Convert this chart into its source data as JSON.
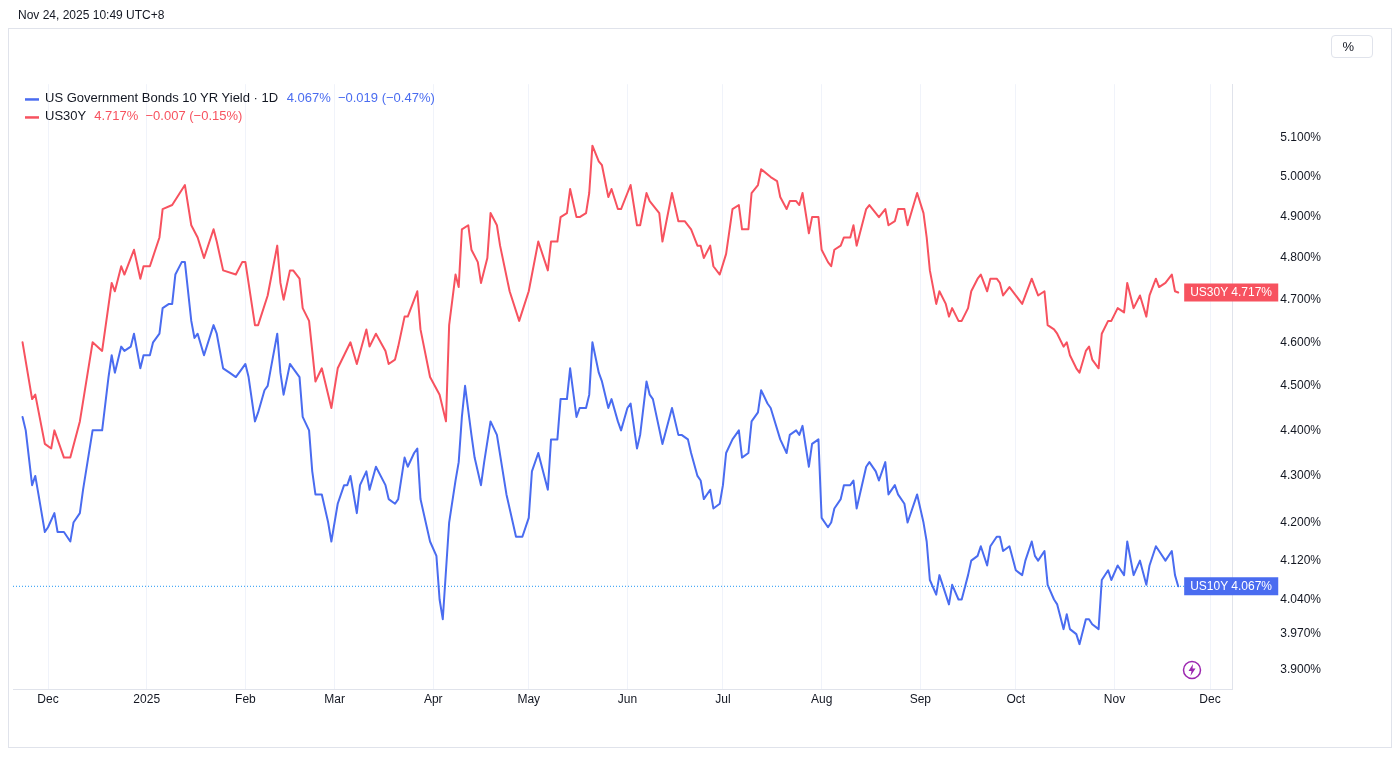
{
  "chart_data": {
    "type": "line",
    "legend": "top left",
    "grid": "x",
    "log": true,
    "xlim": [
      "2024-11-20",
      "2025-12-08"
    ],
    "xticks": [
      {
        "value": "2024-12-01",
        "label": "Dec"
      },
      {
        "value": "2025-01-01",
        "label": "2025"
      },
      {
        "value": "2025-02-01",
        "label": "Feb"
      },
      {
        "value": "2025-03-01",
        "label": "Mar"
      },
      {
        "value": "2025-04-01",
        "label": "Apr"
      },
      {
        "value": "2025-05-01",
        "label": "May"
      },
      {
        "value": "2025-06-01",
        "label": "Jun"
      },
      {
        "value": "2025-07-01",
        "label": "Jul"
      },
      {
        "value": "2025-08-01",
        "label": "Aug"
      },
      {
        "value": "2025-09-01",
        "label": "Sep"
      },
      {
        "value": "2025-10-01",
        "label": "Oct"
      },
      {
        "value": "2025-11-01",
        "label": "Nov"
      },
      {
        "value": "2025-12-01",
        "label": "Dec"
      }
    ],
    "ylim": [
      3.86,
      5.24
    ],
    "yticks": [
      {
        "value": 3.9,
        "label": "3.900%"
      },
      {
        "value": 3.97,
        "label": "3.970%"
      },
      {
        "value": 4.04,
        "label": "4.040%"
      },
      {
        "value": 4.12,
        "label": "4.120%"
      },
      {
        "value": 4.2,
        "label": "4.200%"
      },
      {
        "value": 4.3,
        "label": "4.300%"
      },
      {
        "value": 4.4,
        "label": "4.400%"
      },
      {
        "value": 4.5,
        "label": "4.500%"
      },
      {
        "value": 4.6,
        "label": "4.600%"
      },
      {
        "value": 4.7,
        "label": "4.700%"
      },
      {
        "value": 4.8,
        "label": "4.800%"
      },
      {
        "value": 4.9,
        "label": "4.900%"
      },
      {
        "value": 5.0,
        "label": "5.000%"
      },
      {
        "value": 5.1,
        "label": "5.100%"
      }
    ],
    "ref_lines": [
      {
        "axis": "y",
        "value": 4.067,
        "color": "#2196f3",
        "line_style": "dotted"
      }
    ],
    "annotations": [
      "Nov 24, 2025 10:49 UTC+8",
      "4.067%  −0.019 (−0.47%)",
      "4.717%  −0.007 (−0.15%)",
      "%",
      {
        "text": "US10Y 4.067%",
        "x": "2025-11-21",
        "y": 4.067
      },
      {
        "text": "US30Y 4.717%",
        "x": "2025-11-21",
        "y": 4.717
      }
    ],
    "series": [
      {
        "name": "US Government Bonds 10 YR Yield · 1D",
        "color": "#4a6cf0",
        "x": [
          "2024-11-23",
          "2024-11-24",
          "2024-11-26",
          "2024-11-27",
          "2024-11-28",
          "2024-11-30",
          "2024-12-01",
          "2024-12-03",
          "2024-12-04",
          "2024-12-06",
          "2024-12-08",
          "2024-12-09",
          "2024-12-11",
          "2024-12-12",
          "2024-12-15",
          "2024-12-17",
          "2024-12-18",
          "2024-12-20",
          "2024-12-21",
          "2024-12-22",
          "2024-12-24",
          "2024-12-25",
          "2024-12-27",
          "2024-12-28",
          "2024-12-30",
          "2024-12-31",
          "2025-01-02",
          "2025-01-03",
          "2025-01-05",
          "2025-01-06",
          "2025-01-08",
          "2025-01-09",
          "2025-01-10",
          "2025-01-12",
          "2025-01-13",
          "2025-01-15",
          "2025-01-16",
          "2025-01-17",
          "2025-01-19",
          "2025-01-22",
          "2025-01-23",
          "2025-01-25",
          "2025-01-27",
          "2025-01-29",
          "2025-01-31",
          "2025-02-01",
          "2025-02-02",
          "2025-02-04",
          "2025-02-05",
          "2025-02-07",
          "2025-02-08",
          "2025-02-09",
          "2025-02-11",
          "2025-02-12",
          "2025-02-13",
          "2025-02-15",
          "2025-02-16",
          "2025-02-18",
          "2025-02-19",
          "2025-02-21",
          "2025-02-22",
          "2025-02-23",
          "2025-02-25",
          "2025-02-27",
          "2025-02-28",
          "2025-03-02",
          "2025-03-04",
          "2025-03-05",
          "2025-03-06",
          "2025-03-08",
          "2025-03-09",
          "2025-03-11",
          "2025-03-12",
          "2025-03-14",
          "2025-03-17",
          "2025-03-18",
          "2025-03-20",
          "2025-03-21",
          "2025-03-23",
          "2025-03-24",
          "2025-03-26",
          "2025-03-27",
          "2025-03-28",
          "2025-03-31",
          "2025-04-02",
          "2025-04-03",
          "2025-04-04",
          "2025-04-06",
          "2025-04-08",
          "2025-04-09",
          "2025-04-10",
          "2025-04-11",
          "2025-04-13",
          "2025-04-14",
          "2025-04-16",
          "2025-04-17",
          "2025-04-19",
          "2025-04-21",
          "2025-04-24",
          "2025-04-27",
          "2025-04-29",
          "2025-05-01",
          "2025-05-02",
          "2025-05-04",
          "2025-05-07",
          "2025-05-08",
          "2025-05-10",
          "2025-05-11",
          "2025-05-13",
          "2025-05-14",
          "2025-05-16",
          "2025-05-17",
          "2025-05-19",
          "2025-05-20",
          "2025-05-21",
          "2025-05-23",
          "2025-05-24",
          "2025-05-26",
          "2025-05-27",
          "2025-05-29",
          "2025-05-30",
          "2025-06-01",
          "2025-06-02",
          "2025-06-04",
          "2025-06-05",
          "2025-06-07",
          "2025-06-08",
          "2025-06-09",
          "2025-06-12",
          "2025-06-15",
          "2025-06-17",
          "2025-06-18",
          "2025-06-20",
          "2025-06-21",
          "2025-06-23",
          "2025-06-24",
          "2025-06-25",
          "2025-06-27",
          "2025-06-28",
          "2025-06-30",
          "2025-07-01",
          "2025-07-02",
          "2025-07-04",
          "2025-07-06",
          "2025-07-07",
          "2025-07-09",
          "2025-07-10",
          "2025-07-12",
          "2025-07-13",
          "2025-07-15",
          "2025-07-16",
          "2025-07-19",
          "2025-07-21",
          "2025-07-22",
          "2025-07-24",
          "2025-07-25",
          "2025-07-26",
          "2025-07-28",
          "2025-07-29",
          "2025-07-31",
          "2025-08-01",
          "2025-08-03",
          "2025-08-04",
          "2025-08-05",
          "2025-08-07",
          "2025-08-08",
          "2025-08-10",
          "2025-08-11",
          "2025-08-12",
          "2025-08-15",
          "2025-08-16",
          "2025-08-18",
          "2025-08-19",
          "2025-08-21",
          "2025-08-22",
          "2025-08-24",
          "2025-08-25",
          "2025-08-27",
          "2025-08-28",
          "2025-08-31",
          "2025-09-02",
          "2025-09-03",
          "2025-09-04",
          "2025-09-06",
          "2025-09-07",
          "2025-09-09",
          "2025-09-10",
          "2025-09-11",
          "2025-09-13",
          "2025-09-14",
          "2025-09-16",
          "2025-09-17",
          "2025-09-19",
          "2025-09-20",
          "2025-09-22",
          "2025-09-23",
          "2025-09-25",
          "2025-09-26",
          "2025-09-27",
          "2025-09-29",
          "2025-10-01",
          "2025-10-03",
          "2025-10-04",
          "2025-10-06",
          "2025-10-07",
          "2025-10-08",
          "2025-10-10",
          "2025-10-11",
          "2025-10-13",
          "2025-10-14",
          "2025-10-16",
          "2025-10-17",
          "2025-10-18",
          "2025-10-20",
          "2025-10-21",
          "2025-10-23",
          "2025-10-24",
          "2025-10-25",
          "2025-10-27",
          "2025-10-28",
          "2025-10-30",
          "2025-10-31",
          "2025-11-02",
          "2025-11-04",
          "2025-11-05",
          "2025-11-07",
          "2025-11-09",
          "2025-11-11",
          "2025-11-12",
          "2025-11-14",
          "2025-11-15",
          "2025-11-17",
          "2025-11-19",
          "2025-11-20",
          "2025-11-21"
        ],
        "values": [
          4.43,
          4.4,
          4.28,
          4.3,
          4.26,
          4.18,
          4.19,
          4.22,
          4.18,
          4.18,
          4.16,
          4.2,
          4.22,
          4.27,
          4.4,
          4.4,
          4.4,
          4.52,
          4.57,
          4.53,
          4.59,
          4.58,
          4.59,
          4.62,
          4.54,
          4.57,
          4.57,
          4.6,
          4.62,
          4.68,
          4.69,
          4.69,
          4.76,
          4.79,
          4.79,
          4.65,
          4.61,
          4.62,
          4.57,
          4.64,
          4.62,
          4.54,
          4.53,
          4.52,
          4.54,
          4.55,
          4.52,
          4.42,
          4.44,
          4.49,
          4.5,
          4.54,
          4.62,
          4.53,
          4.48,
          4.55,
          4.54,
          4.52,
          4.43,
          4.4,
          4.31,
          4.26,
          4.26,
          4.2,
          4.16,
          4.24,
          4.28,
          4.28,
          4.3,
          4.22,
          4.28,
          4.31,
          4.27,
          4.32,
          4.28,
          4.25,
          4.24,
          4.25,
          4.34,
          4.32,
          4.35,
          4.36,
          4.25,
          4.16,
          4.13,
          4.04,
          4.0,
          4.2,
          4.29,
          4.33,
          4.43,
          4.5,
          4.39,
          4.34,
          4.28,
          4.33,
          4.42,
          4.39,
          4.26,
          4.17,
          4.17,
          4.21,
          4.31,
          4.35,
          4.27,
          4.38,
          4.38,
          4.47,
          4.47,
          4.54,
          4.43,
          4.45,
          4.45,
          4.48,
          4.6,
          4.53,
          4.51,
          4.45,
          4.47,
          4.42,
          4.4,
          4.45,
          4.46,
          4.36,
          4.39,
          4.51,
          4.48,
          4.47,
          4.37,
          4.45,
          4.39,
          4.39,
          4.38,
          4.35,
          4.3,
          4.29,
          4.25,
          4.27,
          4.23,
          4.24,
          4.28,
          4.35,
          4.38,
          4.4,
          4.34,
          4.35,
          4.42,
          4.44,
          4.49,
          4.46,
          4.45,
          4.38,
          4.35,
          4.39,
          4.4,
          4.39,
          4.41,
          4.32,
          4.37,
          4.38,
          4.21,
          4.19,
          4.2,
          4.23,
          4.25,
          4.28,
          4.28,
          4.29,
          4.23,
          4.32,
          4.33,
          4.31,
          4.29,
          4.33,
          4.26,
          4.28,
          4.26,
          4.24,
          4.2,
          4.26,
          4.2,
          4.16,
          4.08,
          4.05,
          4.09,
          4.05,
          4.03,
          4.07,
          4.04,
          4.04,
          4.09,
          4.12,
          4.13,
          4.15,
          4.11,
          4.15,
          4.17,
          4.17,
          4.14,
          4.15,
          4.1,
          4.09,
          4.12,
          4.16,
          4.13,
          4.12,
          4.14,
          4.07,
          4.04,
          4.03,
          3.98,
          4.01,
          3.98,
          3.97,
          3.95,
          4.0,
          4.0,
          3.99,
          3.98,
          4.08,
          4.1,
          4.08,
          4.11,
          4.09,
          4.16,
          4.09,
          4.12,
          4.07,
          4.11,
          4.15,
          4.14,
          4.12,
          4.14,
          4.09,
          4.067
        ]
      },
      {
        "name": "US30Y",
        "color": "#f7525f",
        "x": [
          "2024-11-23",
          "2024-11-26",
          "2024-11-27",
          "2024-11-30",
          "2024-12-02",
          "2024-12-03",
          "2024-12-06",
          "2024-12-08",
          "2024-12-11",
          "2024-12-15",
          "2024-12-18",
          "2024-12-21",
          "2024-12-22",
          "2024-12-24",
          "2024-12-25",
          "2024-12-28",
          "2024-12-30",
          "2024-12-31",
          "2025-01-02",
          "2025-01-05",
          "2025-01-06",
          "2025-01-09",
          "2025-01-13",
          "2025-01-15",
          "2025-01-17",
          "2025-01-19",
          "2025-01-22",
          "2025-01-23",
          "2025-01-25",
          "2025-01-29",
          "2025-01-31",
          "2025-02-01",
          "2025-02-04",
          "2025-02-05",
          "2025-02-08",
          "2025-02-11",
          "2025-02-12",
          "2025-02-13",
          "2025-02-15",
          "2025-02-16",
          "2025-02-18",
          "2025-02-19",
          "2025-02-21",
          "2025-02-22",
          "2025-02-23",
          "2025-02-25",
          "2025-02-27",
          "2025-02-28",
          "2025-03-02",
          "2025-03-04",
          "2025-03-06",
          "2025-03-08",
          "2025-03-11",
          "2025-03-12",
          "2025-03-14",
          "2025-03-17",
          "2025-03-18",
          "2025-03-20",
          "2025-03-21",
          "2025-03-23",
          "2025-03-24",
          "2025-03-27",
          "2025-03-28",
          "2025-03-31",
          "2025-04-03",
          "2025-04-05",
          "2025-04-06",
          "2025-04-08",
          "2025-04-09",
          "2025-04-10",
          "2025-04-12",
          "2025-04-13",
          "2025-04-15",
          "2025-04-16",
          "2025-04-18",
          "2025-04-19",
          "2025-04-21",
          "2025-04-22",
          "2025-04-25",
          "2025-04-28",
          "2025-05-01",
          "2025-05-04",
          "2025-05-07",
          "2025-05-08",
          "2025-05-10",
          "2025-05-11",
          "2025-05-13",
          "2025-05-14",
          "2025-05-16",
          "2025-05-17",
          "2025-05-19",
          "2025-05-20",
          "2025-05-21",
          "2025-05-23",
          "2025-05-24",
          "2025-05-26",
          "2025-05-27",
          "2025-05-29",
          "2025-05-30",
          "2025-06-01",
          "2025-06-02",
          "2025-06-04",
          "2025-06-05",
          "2025-06-07",
          "2025-06-08",
          "2025-06-11",
          "2025-06-12",
          "2025-06-15",
          "2025-06-17",
          "2025-06-19",
          "2025-06-21",
          "2025-06-23",
          "2025-06-24",
          "2025-06-25",
          "2025-06-27",
          "2025-06-28",
          "2025-06-30",
          "2025-07-02",
          "2025-07-04",
          "2025-07-06",
          "2025-07-07",
          "2025-07-09",
          "2025-07-10",
          "2025-07-12",
          "2025-07-13",
          "2025-07-16",
          "2025-07-18",
          "2025-07-19",
          "2025-07-21",
          "2025-07-22",
          "2025-07-24",
          "2025-07-25",
          "2025-07-26",
          "2025-07-28",
          "2025-07-29",
          "2025-07-31",
          "2025-08-01",
          "2025-08-03",
          "2025-08-04",
          "2025-08-05",
          "2025-08-07",
          "2025-08-08",
          "2025-08-10",
          "2025-08-11",
          "2025-08-12",
          "2025-08-15",
          "2025-08-16",
          "2025-08-18",
          "2025-08-19",
          "2025-08-21",
          "2025-08-22",
          "2025-08-24",
          "2025-08-25",
          "2025-08-27",
          "2025-08-28",
          "2025-08-31",
          "2025-09-02",
          "2025-09-03",
          "2025-09-04",
          "2025-09-06",
          "2025-09-07",
          "2025-09-09",
          "2025-09-10",
          "2025-09-11",
          "2025-09-13",
          "2025-09-14",
          "2025-09-16",
          "2025-09-17",
          "2025-09-19",
          "2025-09-20",
          "2025-09-22",
          "2025-09-23",
          "2025-09-25",
          "2025-09-26",
          "2025-09-27",
          "2025-09-29",
          "2025-10-03",
          "2025-10-04",
          "2025-10-06",
          "2025-10-07",
          "2025-10-08",
          "2025-10-10",
          "2025-10-11",
          "2025-10-13",
          "2025-10-14",
          "2025-10-16",
          "2025-10-17",
          "2025-10-18",
          "2025-10-20",
          "2025-10-21",
          "2025-10-23",
          "2025-10-24",
          "2025-10-25",
          "2025-10-27",
          "2025-10-28",
          "2025-10-30",
          "2025-10-31",
          "2025-11-02",
          "2025-11-04",
          "2025-11-05",
          "2025-11-07",
          "2025-11-09",
          "2025-11-11",
          "2025-11-12",
          "2025-11-14",
          "2025-11-15",
          "2025-11-17",
          "2025-11-19",
          "2025-11-20",
          "2025-11-21"
        ],
        "values": [
          4.6,
          4.47,
          4.48,
          4.37,
          4.36,
          4.4,
          4.34,
          4.34,
          4.42,
          4.6,
          4.58,
          4.74,
          4.72,
          4.78,
          4.76,
          4.82,
          4.75,
          4.78,
          4.78,
          4.85,
          4.92,
          4.93,
          4.98,
          4.88,
          4.85,
          4.8,
          4.87,
          4.84,
          4.77,
          4.76,
          4.79,
          4.79,
          4.64,
          4.64,
          4.71,
          4.83,
          4.74,
          4.7,
          4.77,
          4.77,
          4.75,
          4.68,
          4.65,
          4.58,
          4.51,
          4.54,
          4.48,
          4.45,
          4.54,
          4.57,
          4.6,
          4.55,
          4.63,
          4.59,
          4.62,
          4.58,
          4.55,
          4.56,
          4.59,
          4.66,
          4.66,
          4.72,
          4.63,
          4.52,
          4.48,
          4.42,
          4.64,
          4.76,
          4.73,
          4.87,
          4.88,
          4.82,
          4.79,
          4.74,
          4.8,
          4.91,
          4.88,
          4.83,
          4.72,
          4.65,
          4.72,
          4.84,
          4.77,
          4.84,
          4.84,
          4.9,
          4.91,
          4.97,
          4.9,
          4.9,
          4.91,
          4.96,
          5.08,
          5.04,
          5.03,
          4.95,
          4.97,
          4.92,
          4.92,
          4.96,
          4.98,
          4.88,
          4.88,
          4.96,
          4.94,
          4.91,
          4.84,
          4.96,
          4.89,
          4.89,
          4.87,
          4.83,
          4.83,
          4.8,
          4.83,
          4.78,
          4.76,
          4.81,
          4.92,
          4.93,
          4.87,
          4.87,
          4.96,
          4.98,
          5.02,
          5.0,
          4.99,
          4.95,
          4.92,
          4.94,
          4.94,
          4.93,
          4.96,
          4.86,
          4.9,
          4.9,
          4.82,
          4.79,
          4.78,
          4.82,
          4.83,
          4.85,
          4.85,
          4.88,
          4.83,
          4.92,
          4.93,
          4.91,
          4.9,
          4.92,
          4.88,
          4.89,
          4.92,
          4.92,
          4.88,
          4.96,
          4.91,
          4.85,
          4.77,
          4.69,
          4.72,
          4.69,
          4.66,
          4.68,
          4.65,
          4.65,
          4.68,
          4.72,
          4.75,
          4.76,
          4.72,
          4.75,
          4.75,
          4.74,
          4.71,
          4.73,
          4.69,
          4.71,
          4.75,
          4.73,
          4.71,
          4.72,
          4.64,
          4.63,
          4.62,
          4.59,
          4.6,
          4.57,
          4.54,
          4.53,
          4.58,
          4.59,
          4.56,
          4.54,
          4.62,
          4.65,
          4.65,
          4.68,
          4.67,
          4.74,
          4.68,
          4.71,
          4.66,
          4.71,
          4.75,
          4.73,
          4.74,
          4.76,
          4.72,
          4.717
        ]
      }
    ]
  }
}
